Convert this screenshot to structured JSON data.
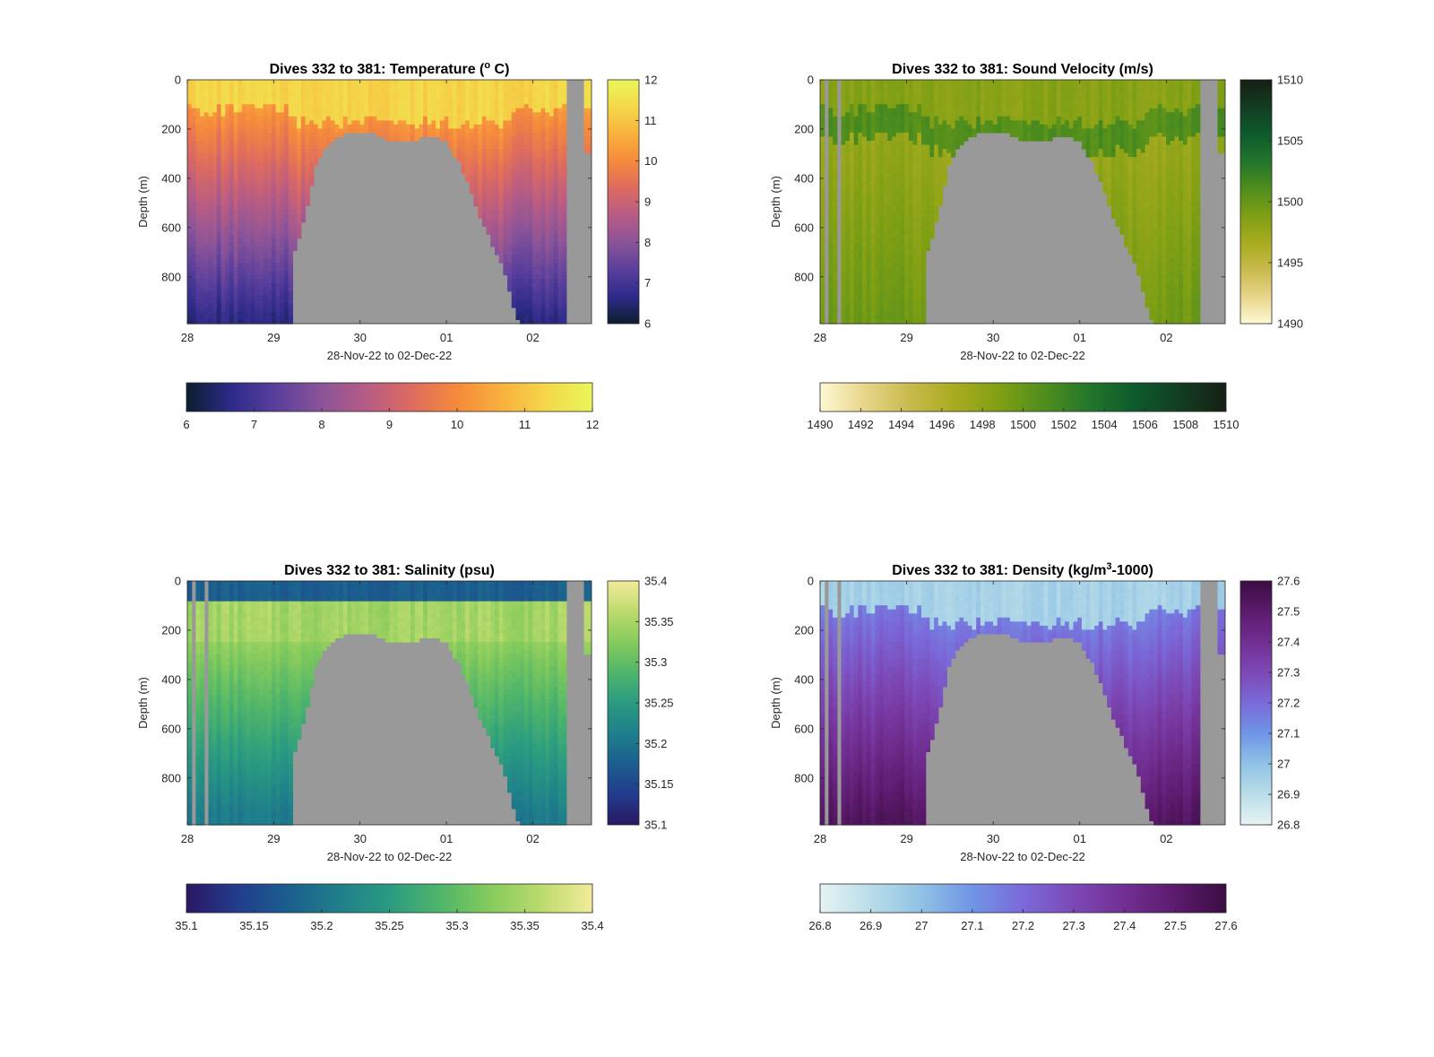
{
  "figure": {
    "background": "#ffffff",
    "no_data_color": "#999999"
  },
  "chart_data": [
    {
      "type": "heatmap",
      "title": "Dives 332 to 381: Temperature (",
      "title_sup": "o",
      "title_suffix": " C)",
      "xlabel": "28-Nov-22 to 02-Dec-22",
      "ylabel": "Depth (m)",
      "x_ticks": [
        "28",
        "29",
        "30",
        "01",
        "02"
      ],
      "y_ticks": [
        "0",
        "200",
        "400",
        "600",
        "800"
      ],
      "y_tick_values": [
        0,
        200,
        400,
        600,
        800
      ],
      "ylim": [
        0,
        990
      ],
      "colorbar_ticks": [
        "12",
        "11",
        "10",
        "9",
        "8",
        "7",
        "6"
      ],
      "h_colorbar_ticks": [
        "6",
        "7",
        "8",
        "9",
        "10",
        "11",
        "12"
      ],
      "range": [
        6,
        12
      ],
      "colormap": [
        "#0b1e2e",
        "#2e2a8a",
        "#5a3f9c",
        "#8b5498",
        "#b75c85",
        "#dd6b5f",
        "#f58a3c",
        "#f9b13d",
        "#f4d84a",
        "#e9f75b"
      ],
      "profile": "temp"
    },
    {
      "type": "heatmap",
      "title": "Dives 332 to 381: Sound Velocity (m/s)",
      "title_sup": "",
      "title_suffix": "",
      "xlabel": "28-Nov-22 to 02-Dec-22",
      "ylabel": "Depth (m)",
      "x_ticks": [
        "28",
        "29",
        "30",
        "01",
        "02"
      ],
      "y_ticks": [
        "0",
        "200",
        "400",
        "600",
        "800"
      ],
      "y_tick_values": [
        0,
        200,
        400,
        600,
        800
      ],
      "ylim": [
        0,
        990
      ],
      "colorbar_ticks": [
        "1510",
        "1505",
        "1500",
        "1495",
        "1490"
      ],
      "h_colorbar_ticks": [
        "1490",
        "1492",
        "1494",
        "1496",
        "1498",
        "1500",
        "1502",
        "1504",
        "1506",
        "1508",
        "1510"
      ],
      "range": [
        1490,
        1510
      ],
      "colormap": [
        "#fef9d4",
        "#e7d58a",
        "#c8ba4d",
        "#a8ab1e",
        "#7e9f14",
        "#4e8d1d",
        "#22752b",
        "#0d5a2c",
        "#123d22",
        "#161f14"
      ],
      "profile": "sv"
    },
    {
      "type": "heatmap",
      "title": "Dives 332 to 381: Salinity (psu)",
      "title_sup": "",
      "title_suffix": "",
      "xlabel": "28-Nov-22 to 02-Dec-22",
      "ylabel": "Depth (m)",
      "x_ticks": [
        "28",
        "29",
        "30",
        "01",
        "02"
      ],
      "y_ticks": [
        "0",
        "200",
        "400",
        "600",
        "800"
      ],
      "y_tick_values": [
        0,
        200,
        400,
        600,
        800
      ],
      "ylim": [
        0,
        990
      ],
      "colorbar_ticks": [
        "35.4",
        "35.35",
        "35.3",
        "35.25",
        "35.2",
        "35.15",
        "35.1"
      ],
      "h_colorbar_ticks": [
        "35.1",
        "35.15",
        "35.2",
        "35.25",
        "35.3",
        "35.35",
        "35.4"
      ],
      "range": [
        35.1,
        35.4
      ],
      "colormap": [
        "#2a1863",
        "#223c8c",
        "#1b5e8e",
        "#1f7f8b",
        "#2a9b80",
        "#4fb56a",
        "#86cb5c",
        "#bcdb6d",
        "#f3eb9a"
      ],
      "profile": "sal"
    },
    {
      "type": "heatmap",
      "title": "Dives 332 to 381: Density (kg/m",
      "title_sup": "3",
      "title_suffix": "-1000)",
      "xlabel": "28-Nov-22 to 02-Dec-22",
      "ylabel": "Depth (m)",
      "x_ticks": [
        "28",
        "29",
        "30",
        "01",
        "02"
      ],
      "y_ticks": [
        "0",
        "200",
        "400",
        "600",
        "800"
      ],
      "y_tick_values": [
        0,
        200,
        400,
        600,
        800
      ],
      "ylim": [
        0,
        990
      ],
      "colorbar_ticks": [
        "27.6",
        "27.5",
        "27.4",
        "27.3",
        "27.2",
        "27.1",
        "27",
        "26.9",
        "26.8"
      ],
      "h_colorbar_ticks": [
        "26.8",
        "26.9",
        "27",
        "27.1",
        "27.2",
        "27.3",
        "27.4",
        "27.5",
        "27.6"
      ],
      "range": [
        26.8,
        27.6
      ],
      "colormap": [
        "#e7f3f3",
        "#b9dde8",
        "#8fc2e5",
        "#7095e6",
        "#7a6ad9",
        "#7d48b6",
        "#712f92",
        "#5c1b6d",
        "#3b0d42"
      ],
      "profile": "dens"
    }
  ]
}
